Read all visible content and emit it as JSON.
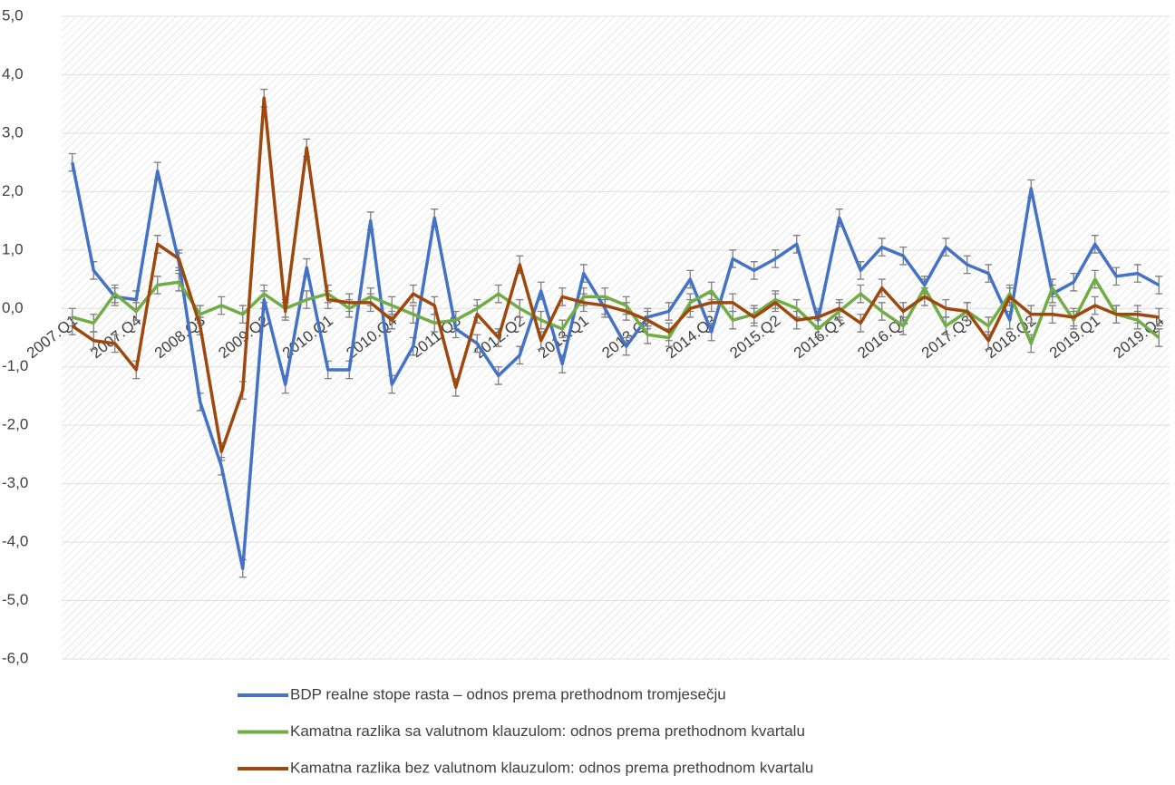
{
  "chart_data": {
    "type": "line",
    "categories": [
      "2007.Q1",
      null,
      null,
      "2007.Q4",
      null,
      null,
      "2008.Q3",
      null,
      null,
      "2009.Q2",
      null,
      null,
      "2010.Q1",
      null,
      null,
      "2010.Q4",
      null,
      null,
      "2011.Q3",
      null,
      null,
      "2012.Q2",
      null,
      null,
      "2013.Q1",
      null,
      null,
      "2013.Q4",
      null,
      null,
      "2014.Q3",
      null,
      null,
      "2015.Q2",
      null,
      null,
      "2016.Q1",
      null,
      null,
      "2016.Q4",
      null,
      null,
      "2017.Q3",
      null,
      null,
      "2018.Q2",
      null,
      null,
      "2019.Q1",
      null,
      null,
      "2019.Q4"
    ],
    "series": [
      {
        "name": "BDP realne stope rasta – odnos prema prethodnom tromjesečju",
        "color": "#4472c4",
        "error": 0.15,
        "values": [
          2.5,
          0.65,
          0.2,
          0.15,
          2.35,
          0.8,
          -1.6,
          -2.7,
          -4.45,
          0.15,
          -1.3,
          0.7,
          -1.05,
          -1.05,
          1.5,
          -1.3,
          -0.65,
          1.55,
          -0.35,
          -0.6,
          -1.15,
          -0.8,
          0.3,
          -0.95,
          0.6,
          0.0,
          -0.65,
          -0.15,
          -0.05,
          0.5,
          -0.4,
          0.85,
          0.65,
          0.85,
          1.1,
          -0.2,
          1.55,
          0.65,
          1.05,
          0.9,
          0.4,
          1.05,
          0.75,
          0.6,
          -0.2,
          2.05,
          0.25,
          0.45,
          1.1,
          0.55,
          0.6,
          0.4
        ]
      },
      {
        "name": "Kamatna razlika sa valutnom klauzulom: odnos prema prethodnom kvartalu",
        "color": "#70ad47",
        "error": 0.15,
        "values": [
          -0.15,
          -0.25,
          0.25,
          -0.05,
          0.4,
          0.45,
          -0.1,
          0.05,
          -0.1,
          0.25,
          0.0,
          0.15,
          0.25,
          0.0,
          0.2,
          0.05,
          -0.1,
          -0.25,
          -0.2,
          0.0,
          0.25,
          0.0,
          -0.2,
          -0.35,
          0.2,
          0.2,
          0.05,
          -0.45,
          -0.5,
          0.1,
          0.3,
          -0.2,
          -0.1,
          0.15,
          0.0,
          -0.35,
          -0.05,
          0.25,
          -0.05,
          -0.3,
          0.35,
          -0.3,
          -0.05,
          -0.3,
          0.25,
          -0.6,
          0.35,
          -0.2,
          0.5,
          -0.1,
          -0.2,
          -0.5
        ]
      },
      {
        "name": "Kamatna razlika bez valutnom klauzulom: odnos prema prethodnom kvartalu",
        "color": "#9e480e",
        "error": 0.15,
        "values": [
          -0.3,
          -0.55,
          -0.6,
          -1.05,
          1.1,
          0.85,
          -0.3,
          -2.45,
          -1.4,
          3.6,
          -0.05,
          2.75,
          0.15,
          0.1,
          0.1,
          -0.2,
          0.25,
          0.05,
          -1.35,
          -0.1,
          -0.5,
          0.75,
          -0.55,
          0.2,
          0.1,
          0.05,
          -0.05,
          -0.2,
          -0.4,
          0.0,
          0.1,
          0.1,
          -0.15,
          0.1,
          -0.2,
          -0.15,
          0.0,
          -0.25,
          0.35,
          -0.05,
          0.2,
          0.0,
          -0.05,
          -0.55,
          0.2,
          -0.1,
          -0.1,
          -0.15,
          0.05,
          -0.1,
          -0.1,
          -0.15
        ]
      }
    ],
    "ylim": [
      -6,
      5
    ],
    "yticks": [
      {
        "value": -6,
        "label": "-6,0"
      },
      {
        "value": -5,
        "label": "-5,0"
      },
      {
        "value": -4,
        "label": "-4,0"
      },
      {
        "value": -3,
        "label": "-3,0"
      },
      {
        "value": -2,
        "label": "-2,0"
      },
      {
        "value": -1,
        "label": "-1,0"
      },
      {
        "value": 0,
        "label": "0,0"
      },
      {
        "value": 1,
        "label": "1,0"
      },
      {
        "value": 2,
        "label": "2,0"
      },
      {
        "value": 3,
        "label": "3,0"
      },
      {
        "value": 4,
        "label": "4,0"
      },
      {
        "value": 5,
        "label": "5,0"
      }
    ],
    "grid": true,
    "legend": "bottom"
  }
}
